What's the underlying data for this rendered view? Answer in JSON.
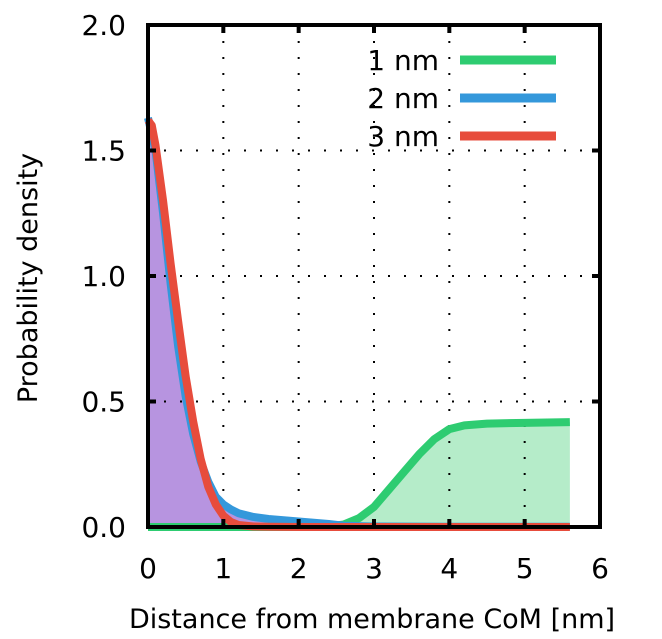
{
  "chart_data": {
    "type": "area",
    "title": "",
    "xlabel": "Distance from membrane CoM [nm]",
    "ylabel": "Probability density",
    "xlim": [
      0,
      6
    ],
    "ylim": [
      0,
      2.0
    ],
    "xticks": [
      "0",
      "1",
      "2",
      "3",
      "4",
      "5",
      "6"
    ],
    "yticks": [
      "0.0",
      "0.5",
      "1.0",
      "1.5",
      "2.0"
    ],
    "grid": true,
    "legend_position": "top-right",
    "series": [
      {
        "name": "1 nm",
        "color": "#2ecc71",
        "fill": "#b5ecc9",
        "x": [
          0,
          0.5,
          1.0,
          1.5,
          2.0,
          2.4,
          2.6,
          2.8,
          3.0,
          3.2,
          3.4,
          3.6,
          3.8,
          4.0,
          4.2,
          4.5,
          5.0,
          5.6
        ],
        "y": [
          0,
          0,
          0,
          0,
          0,
          0.002,
          0.01,
          0.035,
          0.08,
          0.15,
          0.22,
          0.29,
          0.35,
          0.39,
          0.405,
          0.412,
          0.415,
          0.418
        ]
      },
      {
        "name": "2 nm",
        "color": "#3498db",
        "fill": "#b794e0",
        "x": [
          0,
          0.1,
          0.2,
          0.3,
          0.4,
          0.5,
          0.6,
          0.7,
          0.8,
          0.9,
          1.0,
          1.1,
          1.2,
          1.4,
          1.6,
          1.8,
          2.0,
          2.2,
          2.4,
          2.6,
          3.0,
          4.0,
          5.6
        ],
        "y": [
          1.63,
          1.5,
          1.25,
          0.97,
          0.72,
          0.52,
          0.37,
          0.26,
          0.18,
          0.12,
          0.09,
          0.07,
          0.055,
          0.04,
          0.032,
          0.027,
          0.022,
          0.017,
          0.012,
          0.005,
          0.002,
          0.001,
          0.001
        ]
      },
      {
        "name": "3 nm",
        "color": "#e74c3c",
        "fill": "none",
        "x": [
          0,
          0.05,
          0.1,
          0.2,
          0.3,
          0.4,
          0.5,
          0.6,
          0.7,
          0.8,
          0.9,
          1.0,
          1.1,
          1.2,
          1.4,
          1.6,
          2.0,
          3.0,
          4.0,
          5.6
        ],
        "y": [
          1.62,
          1.6,
          1.52,
          1.3,
          1.05,
          0.82,
          0.6,
          0.42,
          0.27,
          0.16,
          0.09,
          0.045,
          0.02,
          0.008,
          0.002,
          0.001,
          0.0,
          0.0,
          0.0,
          0.0
        ]
      }
    ]
  }
}
